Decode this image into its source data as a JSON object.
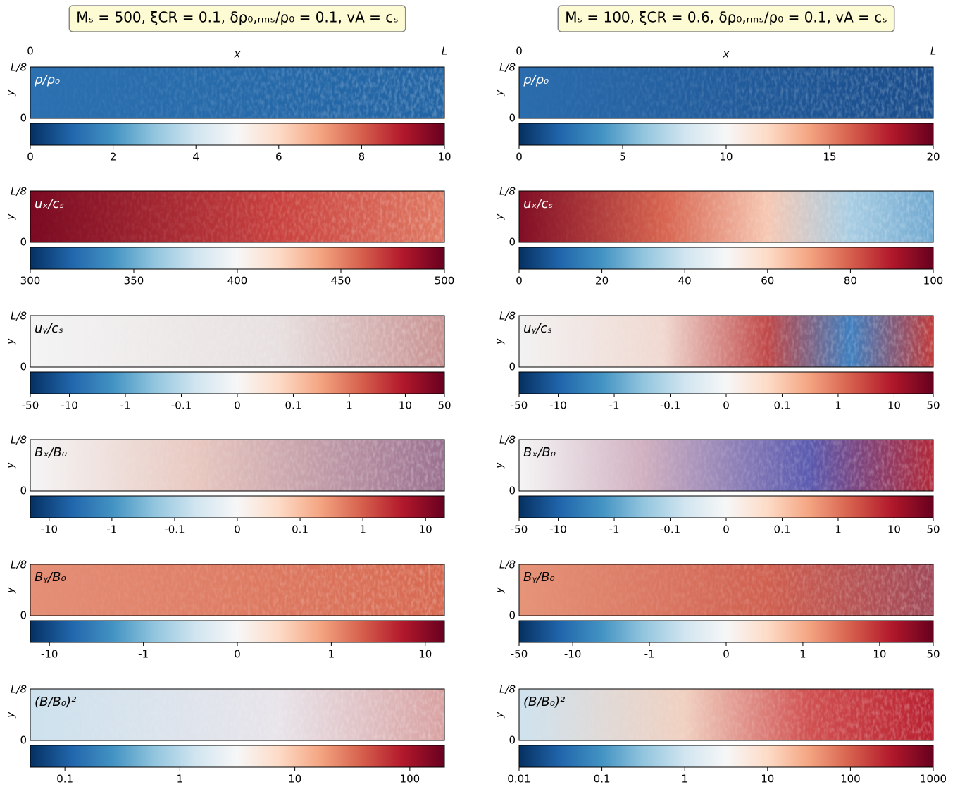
{
  "chart_data": [
    {
      "type": "heatmap",
      "title": "Mₛ = 500, ξCR = 0.1, δρ₀,ᵣₘₛ/ρ₀ = 0.1, vA = cₛ",
      "x_label": "x",
      "x_tick_labels": [
        "0",
        "L"
      ],
      "y_label": "y",
      "y_tick_labels": [
        "0",
        "L/8"
      ],
      "panels": [
        {
          "label": "ρ/ρ₀",
          "label_color": "#ffffff",
          "scale": "linear",
          "clim": [
            0,
            10
          ],
          "cticks": [
            0,
            2,
            4,
            6,
            8,
            10
          ]
        },
        {
          "label": "uₓ/cₛ",
          "label_color": "#ffffff",
          "scale": "linear",
          "clim": [
            300,
            500
          ],
          "cticks": [
            300,
            350,
            400,
            450,
            500
          ]
        },
        {
          "label": "uᵧ/cₛ",
          "label_color": "#000000",
          "scale": "symlog",
          "clim": [
            -50,
            50
          ],
          "cticks": [
            -50,
            -10,
            -1,
            -0.1,
            0,
            0.1,
            1,
            10,
            50
          ]
        },
        {
          "label": "Bₓ/B₀",
          "label_color": "#000000",
          "scale": "symlog",
          "clim": [
            -20,
            20
          ],
          "cticks": [
            -10,
            -1,
            -0.1,
            0,
            0.1,
            1,
            10
          ]
        },
        {
          "label": "Bᵧ/B₀",
          "label_color": "#000000",
          "scale": "symlog",
          "clim": [
            -16,
            16
          ],
          "cticks": [
            -10,
            -1,
            0,
            1,
            10
          ]
        },
        {
          "label": "(B/B₀)²",
          "label_color": "#000000",
          "scale": "log",
          "clim": [
            0.05,
            200
          ],
          "cticks": [
            0.1,
            1,
            10,
            100
          ]
        }
      ]
    },
    {
      "type": "heatmap",
      "title": "Mₛ = 100, ξCR = 0.6, δρ₀,ᵣₘₛ/ρ₀ = 0.1, vA = cₛ",
      "x_label": "x",
      "x_tick_labels": [
        "0",
        "L"
      ],
      "y_label": "y",
      "y_tick_labels": [
        "0",
        "L/8"
      ],
      "panels": [
        {
          "label": "ρ/ρ₀",
          "label_color": "#ffffff",
          "scale": "linear",
          "clim": [
            0,
            20
          ],
          "cticks": [
            0,
            5,
            10,
            15,
            20
          ]
        },
        {
          "label": "uₓ/cₛ",
          "label_color": "#ffffff",
          "scale": "linear",
          "clim": [
            0,
            100
          ],
          "cticks": [
            0,
            20,
            40,
            60,
            80,
            100
          ]
        },
        {
          "label": "uᵧ/cₛ",
          "label_color": "#000000",
          "scale": "symlog",
          "clim": [
            -50,
            50
          ],
          "cticks": [
            -50,
            -10,
            -1,
            -0.1,
            0,
            0.1,
            1,
            10,
            50
          ]
        },
        {
          "label": "Bₓ/B₀",
          "label_color": "#000000",
          "scale": "symlog",
          "clim": [
            -50,
            50
          ],
          "cticks": [
            -50,
            -10,
            -1,
            -0.1,
            0,
            0.1,
            1,
            10,
            50
          ]
        },
        {
          "label": "Bᵧ/B₀",
          "label_color": "#000000",
          "scale": "symlog",
          "clim": [
            -50,
            50
          ],
          "cticks": [
            -50,
            -10,
            -1,
            0,
            1,
            10,
            50
          ]
        },
        {
          "label": "(B/B₀)²",
          "label_color": "#000000",
          "scale": "log",
          "clim": [
            0.01,
            1000
          ],
          "cticks": [
            0.01,
            0.1,
            1,
            10,
            100,
            1000
          ]
        }
      ]
    }
  ]
}
